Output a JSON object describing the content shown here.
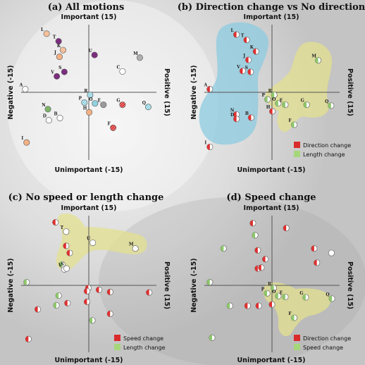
{
  "colors": {
    "purple": "#7b2d7e",
    "orange": "#f4b183",
    "gray": "#9a9a9a",
    "cyan": "#8fd3e0",
    "green": "#7fb36b",
    "red": "#d92b2b",
    "light_green": "#a6d67a",
    "blue_region": "#8ccbe0",
    "yellow_region": "#e3e08e",
    "half_red": "#e03030",
    "half_green": "#8cc86a"
  },
  "chart_data": [
    {
      "id": "a",
      "type": "scatter",
      "title": "(a) All motions",
      "axis_top": "Important (15)",
      "axis_bottom": "Unimportant (-15)",
      "axis_left": "Negative (-15)",
      "axis_right": "Positive (15)",
      "xlim": [
        -15,
        15
      ],
      "ylim": [
        -15,
        15
      ],
      "points": [
        {
          "label": "L",
          "x": -9.5,
          "y": 13.2,
          "style": "orange-stripe"
        },
        {
          "label": "T",
          "x": -6.8,
          "y": 11.5,
          "style": "purple"
        },
        {
          "label": "K",
          "x": -5.8,
          "y": 9.5,
          "style": "orange-stripe"
        },
        {
          "label": "U",
          "x": 1.3,
          "y": 8.4,
          "style": "purple"
        },
        {
          "label": "J",
          "x": -6.6,
          "y": 8.0,
          "style": "orange"
        },
        {
          "label": "M",
          "x": 11.5,
          "y": 7.8,
          "style": "gray-stripe"
        },
        {
          "label": "S",
          "x": -5.5,
          "y": 4.6,
          "style": "purple"
        },
        {
          "label": "V",
          "x": -7.2,
          "y": 3.6,
          "style": "purple"
        },
        {
          "label": "C",
          "x": 7.6,
          "y": 4.7,
          "style": "white"
        },
        {
          "label": "A",
          "x": -14.3,
          "y": 0.7,
          "style": "white"
        },
        {
          "label": "R",
          "x": 0.3,
          "y": -0.6,
          "style": "cyan-stripe"
        },
        {
          "label": "P",
          "x": -1.0,
          "y": -2.3,
          "style": "cyan-stripe"
        },
        {
          "label": "O",
          "x": 1.4,
          "y": -2.5,
          "style": "cyan"
        },
        {
          "label": "E",
          "x": 3.3,
          "y": -2.8,
          "style": "gray"
        },
        {
          "label": "G",
          "x": 7.6,
          "y": -2.8,
          "style": "red-stripe"
        },
        {
          "label": "Q",
          "x": 13.4,
          "y": -3.3,
          "style": "cyan-stripe"
        },
        {
          "label": "N",
          "x": -9.2,
          "y": -3.8,
          "style": "green"
        },
        {
          "label": "H",
          "x": 0.1,
          "y": -4.5,
          "style": "orange"
        },
        {
          "label": "D",
          "x": -9.0,
          "y": -6.3,
          "style": "white"
        },
        {
          "label": "B",
          "x": -6.5,
          "y": -5.8,
          "style": "white"
        },
        {
          "label": "F",
          "x": 5.5,
          "y": -8.0,
          "style": "red-stripe"
        },
        {
          "label": "I",
          "x": -14.0,
          "y": -11.3,
          "style": "orange"
        }
      ]
    },
    {
      "id": "b",
      "type": "scatter",
      "title": "(b) Direction change vs No direction",
      "axis_top": "Important (15)",
      "axis_bottom": "Unimportant (-15)",
      "axis_left": "Negative (-15)",
      "axis_right": "Positive (15)",
      "xlim": [
        -15,
        15
      ],
      "ylim": [
        -15,
        15
      ],
      "legend": [
        {
          "label": "Direction change",
          "color": "#d92b2b"
        },
        {
          "label": "Length change",
          "color": "#a6d67a"
        }
      ],
      "points": [
        {
          "label": "L",
          "x": -8.0,
          "y": 13.0,
          "style": "half-red"
        },
        {
          "label": "T",
          "x": -5.7,
          "y": 11.8,
          "style": "half-red"
        },
        {
          "label": "K",
          "x": -3.6,
          "y": 9.2,
          "style": "half-red"
        },
        {
          "label": "J",
          "x": -5.3,
          "y": 7.3,
          "style": "half-red"
        },
        {
          "label": "M",
          "x": 10.4,
          "y": 7.2,
          "style": "half-green"
        },
        {
          "label": "V",
          "x": -6.6,
          "y": 4.8,
          "style": "half-red"
        },
        {
          "label": "S",
          "x": -4.8,
          "y": 4.6,
          "style": "half-red"
        },
        {
          "label": "A",
          "x": -14.0,
          "y": 0.7,
          "style": "half-red"
        },
        {
          "label": "R",
          "x": 0.5,
          "y": -0.6,
          "style": "half-green"
        },
        {
          "label": "P",
          "x": -1.0,
          "y": -1.6,
          "style": "half-green"
        },
        {
          "label": "O",
          "x": 1.4,
          "y": -2.5,
          "style": "half-green"
        },
        {
          "label": "E",
          "x": 3.0,
          "y": -2.8,
          "style": "half-green"
        },
        {
          "label": "G",
          "x": 7.8,
          "y": -2.8,
          "style": "half-green"
        },
        {
          "label": "Q",
          "x": 13.3,
          "y": -3.0,
          "style": "half-green"
        },
        {
          "label": "N",
          "x": -8.0,
          "y": -5.0,
          "style": "half-red"
        },
        {
          "label": "D",
          "x": -8.0,
          "y": -6.0,
          "style": "half-red"
        },
        {
          "label": "B",
          "x": -4.7,
          "y": -5.7,
          "style": "half-red"
        },
        {
          "label": "H",
          "x": 0.1,
          "y": -4.3,
          "style": "half-red"
        },
        {
          "label": "F",
          "x": 5.0,
          "y": -7.3,
          "style": "half-green"
        },
        {
          "label": "I",
          "x": -14.0,
          "y": -12.3,
          "style": "half-red"
        }
      ]
    },
    {
      "id": "c",
      "type": "scatter",
      "title": "(c) No speed or length change",
      "axis_top": "Important (15)",
      "axis_bottom": "Unimportant (-15)",
      "axis_left": "Negative (-15)",
      "axis_right": "Positive (15)",
      "xlim": [
        -15,
        15
      ],
      "ylim": [
        -15,
        15
      ],
      "legend": [
        {
          "label": "Speed change",
          "color": "#d92b2b"
        },
        {
          "label": "Length change",
          "color": "#a6d67a"
        }
      ],
      "points": [
        {
          "label": "",
          "x": -7.5,
          "y": 14.2,
          "style": "half-red"
        },
        {
          "label": "T",
          "x": -5.1,
          "y": 12.1,
          "style": "white"
        },
        {
          "label": "U",
          "x": 0.9,
          "y": 9.6,
          "style": "white"
        },
        {
          "label": "M",
          "x": 10.5,
          "y": 8.3,
          "style": "white"
        },
        {
          "label": "",
          "x": -5.1,
          "y": 8.9,
          "style": "half-red"
        },
        {
          "label": "",
          "x": -4.3,
          "y": 7.3,
          "style": "half-red"
        },
        {
          "label": "",
          "x": -6.0,
          "y": 4.7,
          "style": "half-green"
        },
        {
          "label": "V",
          "x": -5.5,
          "y": 3.6,
          "style": "white"
        },
        {
          "label": "S",
          "x": -5.0,
          "y": 3.8,
          "style": "white"
        },
        {
          "label": "",
          "x": -14.0,
          "y": 0.7,
          "style": "half-green"
        },
        {
          "label": "",
          "x": -0.1,
          "y": -0.6,
          "style": "half-red"
        },
        {
          "label": "",
          "x": 2.3,
          "y": -1.0,
          "style": "half-red"
        },
        {
          "label": "",
          "x": -0.4,
          "y": -1.3,
          "style": "half-red"
        },
        {
          "label": "",
          "x": 4.8,
          "y": -1.5,
          "style": "half-red"
        },
        {
          "label": "",
          "x": 13.6,
          "y": -1.6,
          "style": "half-red"
        },
        {
          "label": "",
          "x": -6.8,
          "y": -2.3,
          "style": "half-green"
        },
        {
          "label": "",
          "x": -0.4,
          "y": -3.7,
          "style": "half-red"
        },
        {
          "label": "",
          "x": -4.8,
          "y": -4.0,
          "style": "half-red"
        },
        {
          "label": "",
          "x": -7.3,
          "y": -4.5,
          "style": "half-green"
        },
        {
          "label": "",
          "x": 4.8,
          "y": -6.4,
          "style": "half-red"
        },
        {
          "label": "",
          "x": -11.5,
          "y": -5.4,
          "style": "half-red"
        },
        {
          "label": "",
          "x": 0.8,
          "y": -7.9,
          "style": "half-green"
        },
        {
          "label": "",
          "x": -13.6,
          "y": -12.1,
          "style": "half-red"
        }
      ]
    },
    {
      "id": "d",
      "type": "scatter",
      "title": "(d) Speed change",
      "axis_top": "Important (15)",
      "axis_bottom": "Unimportant (-15)",
      "axis_left": "Negative (-15)",
      "axis_right": "Positive (15)",
      "xlim": [
        -15,
        15
      ],
      "ylim": [
        -15,
        15
      ],
      "legend": [
        {
          "label": "Direction change",
          "color": "#d92b2b"
        },
        {
          "label": "Speed change",
          "color": "#a6d67a"
        }
      ],
      "points": [
        {
          "label": "",
          "x": -4.3,
          "y": 14.0,
          "style": "half-red"
        },
        {
          "label": "",
          "x": 3.2,
          "y": 12.9,
          "style": "half-red"
        },
        {
          "label": "",
          "x": -3.8,
          "y": 11.3,
          "style": "half-green"
        },
        {
          "label": "",
          "x": -10.9,
          "y": 8.3,
          "style": "half-green"
        },
        {
          "label": "",
          "x": -3.2,
          "y": 7.9,
          "style": "half-red"
        },
        {
          "label": "",
          "x": 9.5,
          "y": 8.3,
          "style": "half-red"
        },
        {
          "label": "",
          "x": 13.4,
          "y": 7.3,
          "style": "white"
        },
        {
          "label": "",
          "x": -1.5,
          "y": 5.9,
          "style": "half-red"
        },
        {
          "label": "",
          "x": 10.1,
          "y": 5.1,
          "style": "half-red"
        },
        {
          "label": "",
          "x": -3.2,
          "y": 3.8,
          "style": "half-red"
        },
        {
          "label": "",
          "x": -2.4,
          "y": 4.0,
          "style": "half-red"
        },
        {
          "label": "",
          "x": -14.0,
          "y": 0.7,
          "style": "half-green"
        },
        {
          "label": "R",
          "x": 0.4,
          "y": -0.6,
          "style": "half-green"
        },
        {
          "label": "P",
          "x": -1.1,
          "y": -1.8,
          "style": "half-green"
        },
        {
          "label": "O",
          "x": 1.4,
          "y": -2.4,
          "style": "half-green"
        },
        {
          "label": "E",
          "x": 3.0,
          "y": -2.6,
          "style": "half-green"
        },
        {
          "label": "G",
          "x": 7.6,
          "y": -2.7,
          "style": "half-green"
        },
        {
          "label": "Q",
          "x": 13.5,
          "y": -3.0,
          "style": "half-green"
        },
        {
          "label": "",
          "x": -5.5,
          "y": -4.6,
          "style": "half-red"
        },
        {
          "label": "",
          "x": -3.0,
          "y": -4.6,
          "style": "half-red"
        },
        {
          "label": "",
          "x": 0.0,
          "y": -4.3,
          "style": "half-red"
        },
        {
          "label": "",
          "x": -9.5,
          "y": -4.6,
          "style": "half-green"
        },
        {
          "label": "F",
          "x": 5.0,
          "y": -7.3,
          "style": "half-green"
        },
        {
          "label": "",
          "x": -13.5,
          "y": -11.8,
          "style": "half-green"
        }
      ]
    }
  ]
}
